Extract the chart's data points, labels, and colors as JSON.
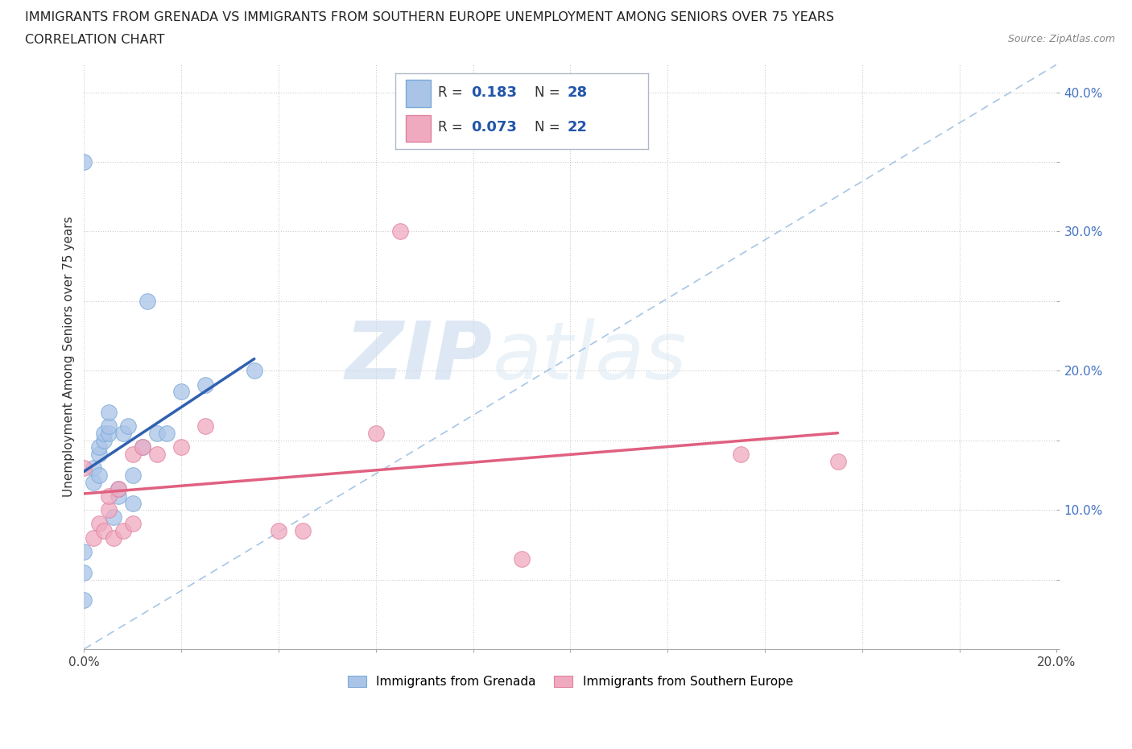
{
  "title_line1": "IMMIGRANTS FROM GRENADA VS IMMIGRANTS FROM SOUTHERN EUROPE UNEMPLOYMENT AMONG SENIORS OVER 75 YEARS",
  "title_line2": "CORRELATION CHART",
  "source_text": "Source: ZipAtlas.com",
  "ylabel": "Unemployment Among Seniors over 75 years",
  "xlim": [
    0.0,
    0.2
  ],
  "ylim": [
    0.0,
    0.42
  ],
  "grenada_color": "#aac4e8",
  "grenada_edge_color": "#7aaad8",
  "southern_europe_color": "#f0aac0",
  "southern_europe_edge_color": "#e080a0",
  "grenada_line_color": "#3060b0",
  "southern_europe_line_color": "#e06080",
  "ref_line_color": "#90b8e0",
  "R_grenada": 0.183,
  "N_grenada": 28,
  "R_southern": 0.073,
  "N_southern": 22,
  "grenada_x": [
    0.0,
    0.0,
    0.0,
    0.0,
    0.002,
    0.002,
    0.003,
    0.003,
    0.003,
    0.004,
    0.004,
    0.005,
    0.005,
    0.005,
    0.006,
    0.007,
    0.007,
    0.008,
    0.009,
    0.01,
    0.01,
    0.012,
    0.013,
    0.015,
    0.017,
    0.02,
    0.025,
    0.035
  ],
  "grenada_y": [
    0.035,
    0.055,
    0.07,
    0.35,
    0.12,
    0.13,
    0.125,
    0.14,
    0.145,
    0.15,
    0.155,
    0.155,
    0.16,
    0.17,
    0.095,
    0.11,
    0.115,
    0.155,
    0.16,
    0.105,
    0.125,
    0.145,
    0.25,
    0.155,
    0.155,
    0.185,
    0.19,
    0.2
  ],
  "southern_x": [
    0.0,
    0.002,
    0.003,
    0.004,
    0.005,
    0.005,
    0.006,
    0.007,
    0.008,
    0.01,
    0.01,
    0.012,
    0.015,
    0.02,
    0.025,
    0.04,
    0.045,
    0.06,
    0.065,
    0.09,
    0.135,
    0.155
  ],
  "southern_y": [
    0.13,
    0.08,
    0.09,
    0.085,
    0.1,
    0.11,
    0.08,
    0.115,
    0.085,
    0.09,
    0.14,
    0.145,
    0.14,
    0.145,
    0.16,
    0.085,
    0.085,
    0.155,
    0.3,
    0.065,
    0.14,
    0.135
  ],
  "watermark_zip": "ZIP",
  "watermark_atlas": "atlas",
  "background_color": "#ffffff",
  "title_fontsize": 11.5,
  "axis_label_fontsize": 11,
  "tick_label_fontsize": 11
}
